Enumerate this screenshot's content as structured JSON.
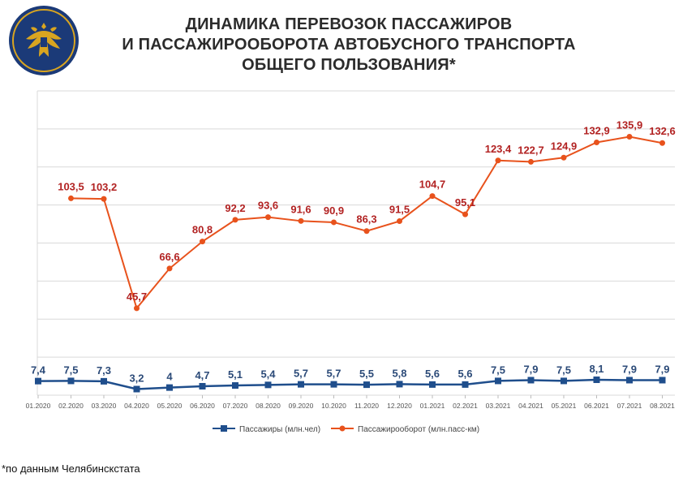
{
  "title_lines": [
    "ДИНАМИКА ПЕРЕВОЗОК ПАССАЖИРОВ",
    "И ПАССАЖИРООБОРОТА АВТОБУСНОГО ТРАНСПОРТА",
    "ОБЩЕГО ПОЛЬЗОВАНИЯ*"
  ],
  "footnote": "*по данным Челябинскстата",
  "colors": {
    "passengers": "#1f4e8c",
    "turnover": "#e8521c",
    "turnover_label": "#b22222",
    "passengers_label": "#2b4a78",
    "grid": "#d9d9d9",
    "emblem_bg": "#1b3a78",
    "emblem_gold": "#d9a520"
  },
  "emblem_icon": "double-headed-eagle-emblem",
  "chart_data": {
    "type": "line",
    "categories": [
      "01.2020",
      "02.2020",
      "03.2020",
      "04.2020",
      "05.2020",
      "06.2020",
      "07.2020",
      "08.2020",
      "09.2020",
      "10.2020",
      "11.2020",
      "12.2020",
      "01.2021",
      "02.2021",
      "03.2021",
      "04.2021",
      "05.2021",
      "06.2021",
      "07.2021",
      "08.2021"
    ],
    "series": [
      {
        "name": "Пассажиры (млн.чел)",
        "values": [
          7.4,
          7.5,
          7.3,
          3.2,
          4,
          4.7,
          5.1,
          5.4,
          5.7,
          5.7,
          5.5,
          5.8,
          5.6,
          5.6,
          7.5,
          7.9,
          7.5,
          8.1,
          7.9,
          7.9
        ],
        "labels": [
          "7,4",
          "7,5",
          "7,3",
          "3,2",
          "4",
          "4,7",
          "5,1",
          "5,4",
          "5,7",
          "5,7",
          "5,5",
          "5,8",
          "5,6",
          "5,6",
          "7,5",
          "7,9",
          "7,5",
          "8,1",
          "7,9",
          "7,9"
        ]
      },
      {
        "name": "Пассажирооборот (млн.пасс-км)",
        "values": [
          null,
          103.5,
          103.2,
          45.7,
          66.6,
          80.8,
          92.2,
          93.6,
          91.6,
          90.9,
          86.3,
          91.5,
          104.7,
          95.1,
          123.4,
          122.7,
          124.9,
          132.9,
          135.9,
          132.6
        ],
        "labels": [
          "",
          "103,5",
          "103,2",
          "45,7",
          "66,6",
          "80,8",
          "92,2",
          "93,6",
          "91,6",
          "90,9",
          "86,3",
          "91,5",
          "104,7",
          "95,1",
          "123,4",
          "122,7",
          "124,9",
          "132,9",
          "135,9",
          "132,6"
        ]
      }
    ],
    "ylim": [
      0,
      160
    ],
    "grid": true,
    "legend_position": "bottom"
  }
}
